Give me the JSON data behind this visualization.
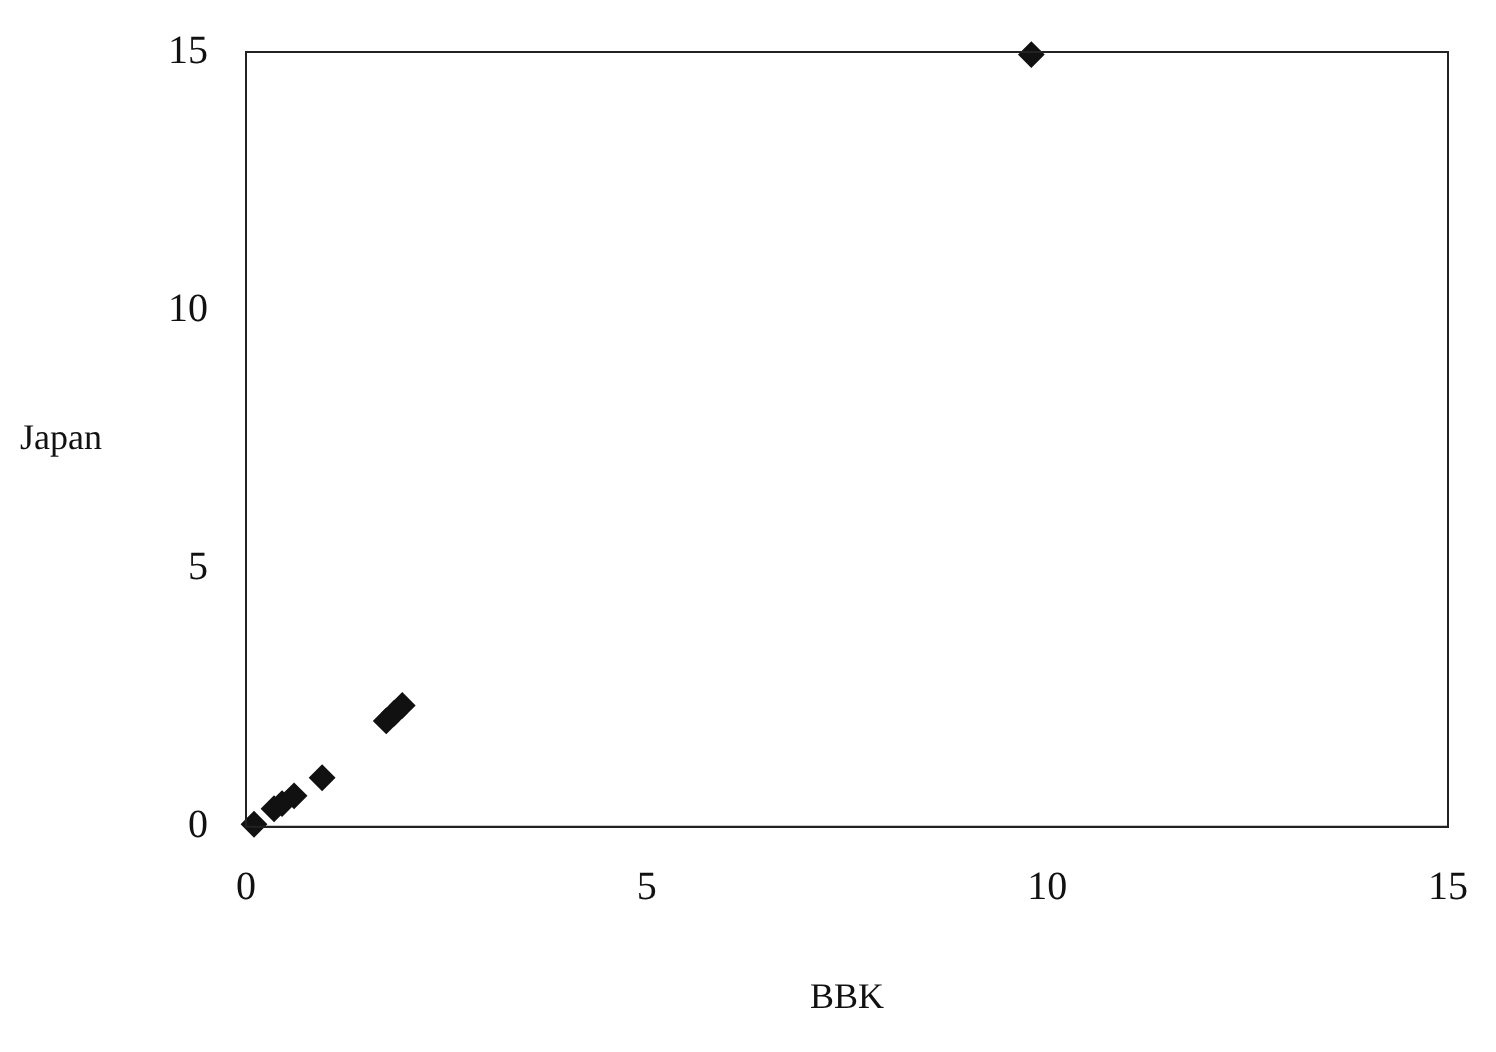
{
  "chart_data": {
    "type": "scatter",
    "xlabel": "BBK",
    "ylabel": "Japan",
    "series": [
      {
        "color": "#111111",
        "x": [
          0.1,
          0.35,
          0.45,
          0.6,
          0.95,
          1.75,
          1.85,
          1.95,
          9.8
        ],
        "values": [
          0.05,
          0.35,
          0.45,
          0.6,
          0.95,
          2.05,
          2.2,
          2.35,
          14.95
        ]
      }
    ],
    "xlim": [
      0,
      15
    ],
    "xticks": [
      0,
      5,
      10,
      15
    ],
    "ylim": [
      0,
      15
    ],
    "yticks": [
      0,
      5,
      10,
      15
    ],
    "grid": false,
    "legend": false,
    "marker": "diamond"
  }
}
